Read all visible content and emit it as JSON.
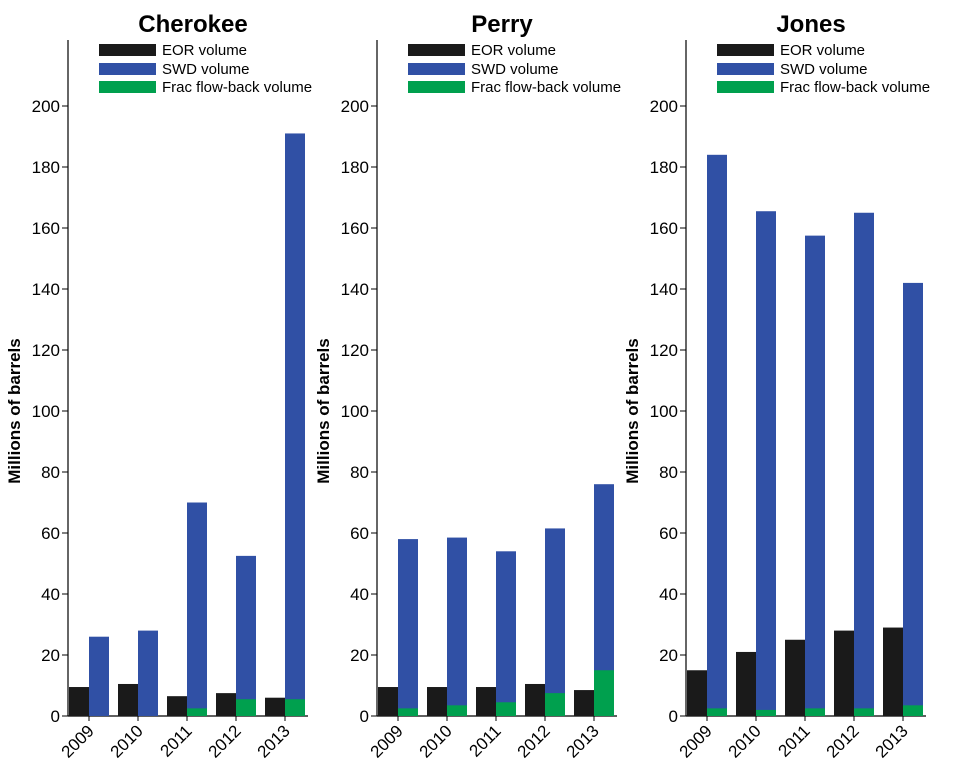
{
  "chart_data": [
    {
      "type": "bar",
      "title": "Cherokee",
      "ylabel": "Millions of barrels",
      "xlabel": "",
      "ylim": [
        0,
        220
      ],
      "yticks": [
        0,
        20,
        40,
        60,
        80,
        100,
        120,
        140,
        160,
        180,
        200
      ],
      "categories": [
        "2009",
        "2010",
        "2011",
        "2012",
        "2013"
      ],
      "series": [
        {
          "name": "EOR volume",
          "values": [
            9.5,
            10.5,
            6.5,
            7.5,
            6
          ]
        },
        {
          "name": "SWD volume",
          "values": [
            26,
            28,
            70,
            52.5,
            191
          ]
        },
        {
          "name": "Frac flow-back volume",
          "values": [
            0,
            0,
            2.5,
            5.5,
            5.5
          ]
        }
      ],
      "legend_position": "top-right",
      "grid": false
    },
    {
      "type": "bar",
      "title": "Perry",
      "ylabel": "Millions of barrels",
      "xlabel": "",
      "ylim": [
        0,
        220
      ],
      "yticks": [
        0,
        20,
        40,
        60,
        80,
        100,
        120,
        140,
        160,
        180,
        200
      ],
      "categories": [
        "2009",
        "2010",
        "2011",
        "2012",
        "2013"
      ],
      "series": [
        {
          "name": "EOR volume",
          "values": [
            9.5,
            9.5,
            9.5,
            10.5,
            8.5
          ]
        },
        {
          "name": "SWD volume",
          "values": [
            58,
            58.5,
            54,
            61.5,
            76
          ]
        },
        {
          "name": "Frac flow-back volume",
          "values": [
            2.5,
            3.5,
            4.5,
            7.5,
            15
          ]
        }
      ],
      "legend_position": "top-right",
      "grid": false
    },
    {
      "type": "bar",
      "title": "Jones",
      "ylabel": "Millions of barrels",
      "xlabel": "",
      "ylim": [
        0,
        220
      ],
      "yticks": [
        0,
        20,
        40,
        60,
        80,
        100,
        120,
        140,
        160,
        180,
        200
      ],
      "categories": [
        "2009",
        "2010",
        "2011",
        "2012",
        "2013"
      ],
      "series": [
        {
          "name": "EOR volume",
          "values": [
            15,
            21,
            25,
            28,
            29
          ]
        },
        {
          "name": "SWD volume",
          "values": [
            184,
            165.5,
            157.5,
            165,
            142
          ]
        },
        {
          "name": "Frac flow-back volume",
          "values": [
            2.5,
            2,
            2.5,
            2.5,
            3.5
          ]
        }
      ],
      "legend_position": "top-right",
      "grid": false
    }
  ],
  "colors": {
    "EOR volume": "#1a1a1a",
    "SWD volume": "#3050a5",
    "Frac flow-back volume": "#00a04e",
    "axis": "#000000"
  }
}
